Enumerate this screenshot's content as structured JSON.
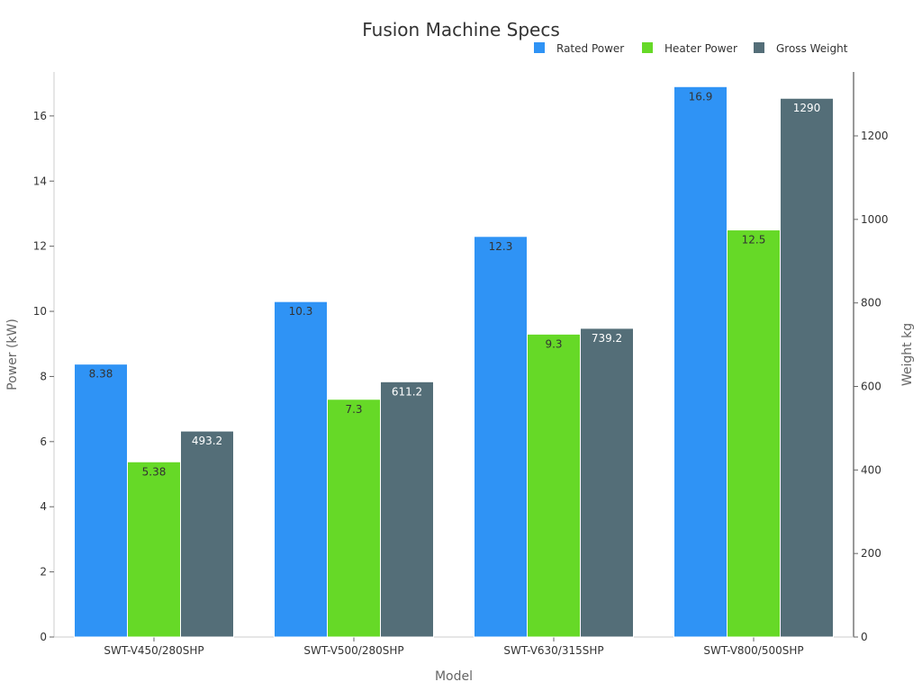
{
  "chart_data": {
    "type": "bar",
    "title": "Fusion Machine Specs",
    "xlabel": "Model",
    "ylabel_left": "Power (kW)",
    "ylabel_right": "Weight kg",
    "categories": [
      "SWT-V450/280SHP",
      "SWT-V500/280SHP",
      "SWT-V630/315SHP",
      "SWT-V800/500SHP"
    ],
    "ylim_left": [
      0,
      17.35
    ],
    "ylim_right": [
      0,
      1353
    ],
    "yticks_left": [
      0,
      2,
      4,
      6,
      8,
      10,
      12,
      14,
      16
    ],
    "yticks_right": [
      0,
      200,
      400,
      600,
      800,
      1000,
      1200
    ],
    "legend_position": "top-right",
    "grid": false,
    "series": [
      {
        "name": "Rated Power",
        "axis": "left",
        "color": "#2f93f5",
        "label_color": "#333333",
        "values": [
          8.38,
          10.3,
          12.3,
          16.9
        ],
        "labels": [
          "8.38",
          "10.3",
          "12.3",
          "16.9"
        ]
      },
      {
        "name": "Heater Power",
        "axis": "left",
        "color": "#66d927",
        "label_color": "#333333",
        "values": [
          5.38,
          7.3,
          9.3,
          12.5
        ],
        "labels": [
          "5.38",
          "7.3",
          "9.3",
          "12.5"
        ]
      },
      {
        "name": "Gross Weight",
        "axis": "right",
        "color": "#546e78",
        "label_color": "#ffffff",
        "values": [
          493.2,
          611.2,
          739.2,
          1290
        ],
        "labels": [
          "493.2",
          "611.2",
          "739.2",
          "1290"
        ]
      }
    ]
  }
}
